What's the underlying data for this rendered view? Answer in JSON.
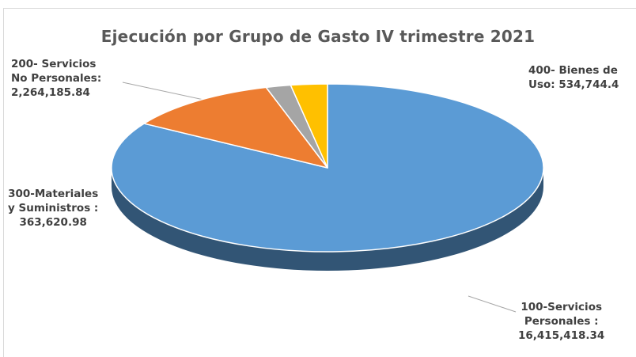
{
  "chart_data": {
    "type": "pie",
    "title": "Ejecución por Grupo de Gasto IV trimestre 2021",
    "slices": [
      {
        "label_lines": [
          "100-Servicios",
          "Personales :",
          "16,415,418.34"
        ],
        "value": 16415418.34,
        "color": "#5b9bd5"
      },
      {
        "label_lines": [
          "200- Servicios",
          "No Personales:",
          "2,264,185.84"
        ],
        "value": 2264185.84,
        "color": "#ed7d31"
      },
      {
        "label_lines": [
          "300-Materiales",
          "y Suministros :",
          "363,620.98"
        ],
        "value": 363620.98,
        "color": "#a5a5a5"
      },
      {
        "label_lines": [
          "400- Bienes de",
          "Uso: 534,744.4"
        ],
        "value": 534744.4,
        "color": "#ffc000"
      }
    ]
  }
}
